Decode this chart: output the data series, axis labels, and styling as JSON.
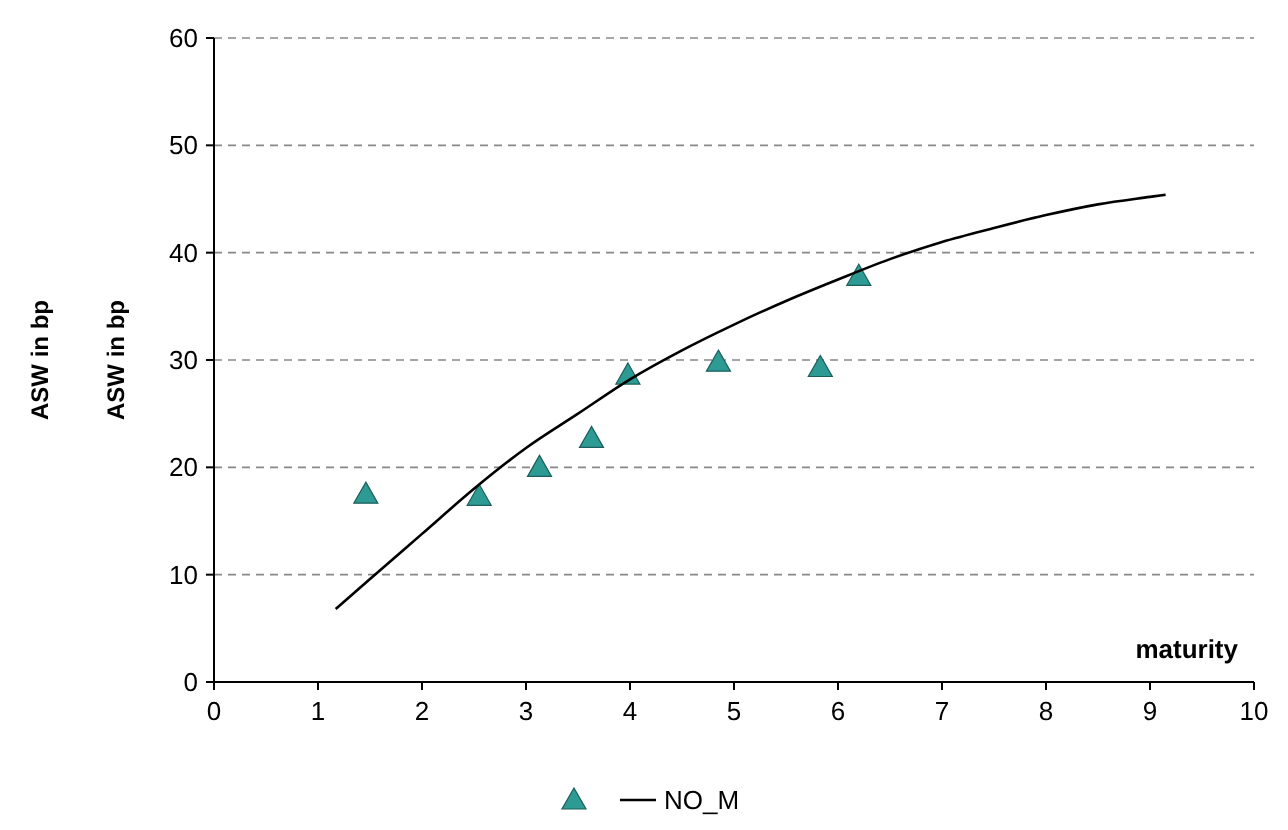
{
  "chart_data": {
    "type": "scatter",
    "xlabel": "maturity",
    "ylabel": "ASW in bp",
    "annotations": [
      "ASW in bp"
    ],
    "xlim": [
      0,
      10
    ],
    "xticks": [
      0,
      1,
      2,
      3,
      4,
      5,
      6,
      7,
      8,
      9,
      10
    ],
    "ylim": [
      0,
      60
    ],
    "yticks": [
      0,
      10,
      20,
      30,
      40,
      50,
      60
    ],
    "grid": "y",
    "legend": "bottom",
    "marker": "triangle",
    "series": [
      {
        "color": "#2e9a94",
        "x": [
          1.46,
          2.55,
          3.13,
          3.63,
          3.98,
          4.85,
          5.83,
          6.2
        ],
        "values": [
          17.5,
          17.3,
          20,
          22.7,
          28.6,
          29.8,
          29.3,
          37.8
        ]
      },
      {
        "name": "NO_M",
        "type": "line",
        "marker": "none",
        "color": "#000000",
        "x": [
          1.17,
          1.5,
          2,
          2.5,
          3,
          3.5,
          4,
          4.5,
          5,
          5.5,
          6,
          6.5,
          7,
          7.5,
          8,
          8.5,
          9,
          9.15
        ],
        "values": [
          6.8,
          9.6,
          13.8,
          18,
          21.8,
          25,
          28.2,
          30.9,
          33.3,
          35.5,
          37.5,
          39.4,
          41,
          42.3,
          43.5,
          44.5,
          45.2,
          45.4
        ]
      }
    ]
  }
}
